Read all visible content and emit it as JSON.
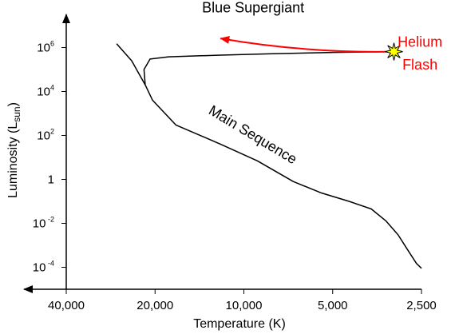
{
  "chart_data": {
    "type": "line",
    "title": "",
    "xlabel": "Temperature (K)",
    "ylabel": "Luminosity (L",
    "ylabel_sub": "sun",
    "ylabel_close": ")",
    "x_scale": "log",
    "x_reversed": true,
    "x_range_K": [
      40000,
      2500
    ],
    "y_scale": "log",
    "y_range_Lsun": [
      1e-05,
      10000000
    ],
    "grid": false,
    "x_ticks": [
      {
        "value": 40000,
        "label": "40,000"
      },
      {
        "value": 20000,
        "label": "20,000"
      },
      {
        "value": 10000,
        "label": "10,000"
      },
      {
        "value": 5000,
        "label": "5,000"
      },
      {
        "value": 2500,
        "label": "2,500"
      }
    ],
    "y_ticks": [
      {
        "value": 1000000,
        "base": "10",
        "exp": "6"
      },
      {
        "value": 10000,
        "base": "10",
        "exp": "4"
      },
      {
        "value": 100,
        "base": "10",
        "exp": "2"
      },
      {
        "value": 1,
        "base": "1",
        "exp": ""
      },
      {
        "value": 0.01,
        "base": "10",
        "exp": " -2"
      },
      {
        "value": 0.0001,
        "base": "10",
        "exp": " -4"
      }
    ],
    "series": [
      {
        "color": "#000000",
        "x": [
          27000,
          24000,
          21600,
          20400,
          17000,
          12000,
          9000,
          6800,
          5500,
          4400,
          3700,
          3300,
          3000,
          2800,
          2600,
          2500
        ],
        "y": [
          1500000,
          250000,
          20000,
          4000,
          300,
          40,
          7,
          0.8,
          0.25,
          0.1,
          0.045,
          0.013,
          0.003,
          0.0007,
          0.00015,
          9e-05
        ]
      },
      {
        "color": "#000000",
        "x": [
          21600,
          21800,
          20800,
          18000,
          12000,
          8000,
          5000,
          3100
        ],
        "y": [
          20000,
          100000,
          300000,
          380000,
          450000,
          520000,
          600000,
          650000
        ]
      }
    ],
    "annotations": [
      {
        "text": "Main Sequence",
        "color": "#000000",
        "x": 9500,
        "y": 70,
        "rotate": 31
      },
      {
        "text": "Blue Supergiant",
        "color": "#000000",
        "x": 9300,
        "y": 40000000
      },
      {
        "text": "Helium",
        "color": "#ff0000",
        "x": 2530,
        "y": 1100000
      },
      {
        "text": "Flash",
        "color": "#ff0000",
        "x": 2530,
        "y": 100000
      }
    ],
    "helium_flash_arrow": {
      "color": "#ff0000",
      "from": [
        3100,
        650000
      ],
      "to": [
        12000,
        2600000
      ]
    },
    "star_marker": {
      "x": 3100,
      "y": 650000,
      "fill": "#ffff00",
      "stroke": "#000000"
    }
  }
}
